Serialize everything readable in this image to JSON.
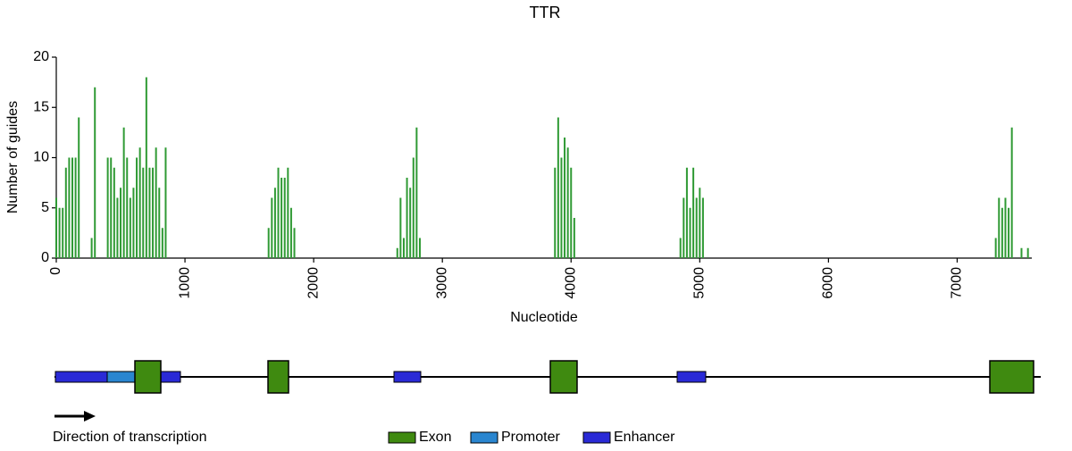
{
  "chart_data": {
    "type": "bar",
    "title": "TTR",
    "x_label": "Nucleotide",
    "y_label": "Number of guides",
    "color": "#2f9a34",
    "x": [
      0,
      25,
      50,
      75,
      100,
      125,
      150,
      175,
      275,
      300,
      400,
      425,
      450,
      475,
      500,
      525,
      550,
      575,
      600,
      625,
      650,
      675,
      700,
      725,
      750,
      775,
      800,
      825,
      850,
      1650,
      1675,
      1700,
      1725,
      1750,
      1775,
      1800,
      1825,
      1850,
      2650,
      2675,
      2700,
      2725,
      2750,
      2775,
      2800,
      2825,
      3875,
      3900,
      3925,
      3950,
      3975,
      4000,
      4025,
      4850,
      4875,
      4900,
      4925,
      4950,
      4975,
      5000,
      5025,
      7300,
      7325,
      7350,
      7375,
      7400,
      7425,
      7500,
      7550
    ],
    "values": [
      6,
      5,
      5,
      9,
      10,
      10,
      10,
      14,
      2,
      17,
      10,
      10,
      9,
      6,
      7,
      13,
      10,
      6,
      7,
      10,
      11,
      9,
      18,
      9,
      9,
      11,
      7,
      3,
      11,
      3,
      6,
      7,
      9,
      8,
      8,
      9,
      5,
      3,
      1,
      6,
      2,
      8,
      7,
      10,
      13,
      2,
      9,
      14,
      10,
      12,
      11,
      9,
      4,
      2,
      6,
      9,
      5,
      9,
      6,
      7,
      6,
      2,
      6,
      5,
      6,
      5,
      13,
      1,
      1
    ],
    "xlim": [
      0,
      7580
    ],
    "xticks": [
      0,
      1000,
      2000,
      3000,
      4000,
      5000,
      6000,
      7000
    ],
    "ylim": [
      0,
      20
    ],
    "yticks": [
      0,
      5,
      10,
      15,
      20
    ]
  },
  "diagram": {
    "direction_label": "Direction of transcription",
    "legend": [
      {
        "name": "Exon",
        "color": "#3f8a10"
      },
      {
        "name": "Promoter",
        "color": "#2a86d0"
      },
      {
        "name": "Enhancer",
        "color": "#2a2ad6"
      }
    ]
  }
}
